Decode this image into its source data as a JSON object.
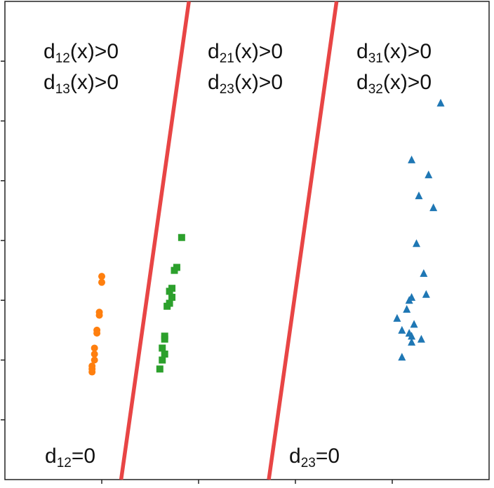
{
  "chart_data": {
    "type": "scatter",
    "title": "",
    "xlabel": "",
    "ylabel": "",
    "xlim": [
      0,
      10
    ],
    "ylim": [
      0,
      8
    ],
    "grid": false,
    "series": [
      {
        "marker": "circle",
        "color": "#ff7f0e",
        "points": [
          [
            2.0,
            3.4
          ],
          [
            2.0,
            3.3
          ],
          [
            1.95,
            2.8
          ],
          [
            1.95,
            2.75
          ],
          [
            1.9,
            2.5
          ],
          [
            1.9,
            2.45
          ],
          [
            1.85,
            2.2
          ],
          [
            1.85,
            2.1
          ],
          [
            1.85,
            2.0
          ],
          [
            1.8,
            1.9
          ],
          [
            1.8,
            1.85
          ],
          [
            1.8,
            1.8
          ]
        ]
      },
      {
        "marker": "square",
        "color": "#2ca02c",
        "points": [
          [
            3.65,
            4.05
          ],
          [
            3.55,
            3.55
          ],
          [
            3.5,
            3.5
          ],
          [
            3.45,
            3.2
          ],
          [
            3.4,
            3.15
          ],
          [
            3.45,
            3.05
          ],
          [
            3.4,
            2.95
          ],
          [
            3.35,
            2.9
          ],
          [
            3.3,
            2.4
          ],
          [
            3.3,
            2.35
          ],
          [
            3.25,
            2.2
          ],
          [
            3.3,
            2.1
          ],
          [
            3.25,
            2.0
          ],
          [
            3.2,
            1.85
          ]
        ]
      },
      {
        "marker": "triangle",
        "color": "#1f77b4",
        "points": [
          [
            9.0,
            6.3
          ],
          [
            8.4,
            5.35
          ],
          [
            8.75,
            5.1
          ],
          [
            8.55,
            4.75
          ],
          [
            8.85,
            4.55
          ],
          [
            8.5,
            3.95
          ],
          [
            8.65,
            3.45
          ],
          [
            8.7,
            3.1
          ],
          [
            8.4,
            3.05
          ],
          [
            8.35,
            3.0
          ],
          [
            8.3,
            2.85
          ],
          [
            8.1,
            2.7
          ],
          [
            8.45,
            2.6
          ],
          [
            8.2,
            2.5
          ],
          [
            8.35,
            2.45
          ],
          [
            8.4,
            2.4
          ],
          [
            8.6,
            2.35
          ],
          [
            8.4,
            2.3
          ],
          [
            8.2,
            2.05
          ]
        ]
      }
    ],
    "boundaries": [
      {
        "color": "#e84545",
        "points": [
          [
            2.4,
            0.0
          ],
          [
            3.8,
            8.0
          ]
        ]
      },
      {
        "color": "#e84545",
        "points": [
          [
            5.45,
            0.0
          ],
          [
            6.85,
            8.0
          ]
        ]
      }
    ]
  },
  "labels": {
    "region1_line1_main": "d",
    "region1_line1_sub": "12",
    "region1_line1_tail": "(x)>0",
    "region1_line2_main": "d",
    "region1_line2_sub": "13",
    "region1_line2_tail": "(x)>0",
    "region2_line1_main": "d",
    "region2_line1_sub": "21",
    "region2_line1_tail": "(x)>0",
    "region2_line2_main": "d",
    "region2_line2_sub": "23",
    "region2_line2_tail": "(x)>0",
    "region3_line1_main": "d",
    "region3_line1_sub": "31",
    "region3_line1_tail": "(x)>0",
    "region3_line2_main": "d",
    "region3_line2_sub": "32",
    "region3_line2_tail": "(x)>0",
    "boundary1_main": "d",
    "boundary1_sub": "12",
    "boundary1_tail": "=0",
    "boundary2_main": "d",
    "boundary2_sub": "23",
    "boundary2_tail": "=0"
  }
}
